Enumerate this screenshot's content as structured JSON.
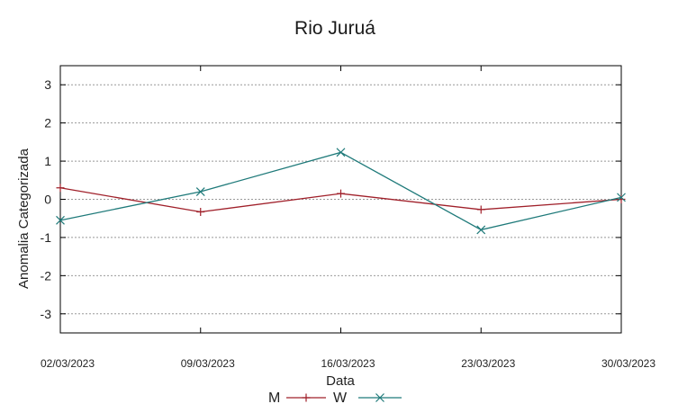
{
  "chart_data": {
    "type": "line",
    "title": "Rio Juruá",
    "xlabel": "Data",
    "ylabel": "Anomalia Categorizada",
    "categories": [
      "02/03/2023",
      "09/03/2023",
      "16/03/2023",
      "23/03/2023",
      "30/03/2023"
    ],
    "yticks": [
      "3",
      "2",
      "1",
      "0",
      "-1",
      "-2",
      "-3"
    ],
    "ylim": [
      -3.5,
      3.5
    ],
    "grid": true,
    "legend_position": "bottom",
    "series": [
      {
        "name": "M",
        "values": [
          0.3,
          -0.33,
          0.15,
          -0.27,
          0.0
        ],
        "color": "#a0202a",
        "marker": "plus"
      },
      {
        "name": "W",
        "values": [
          -0.55,
          0.2,
          1.23,
          -0.8,
          0.05
        ],
        "color": "#1f7a7a",
        "marker": "x"
      }
    ]
  }
}
